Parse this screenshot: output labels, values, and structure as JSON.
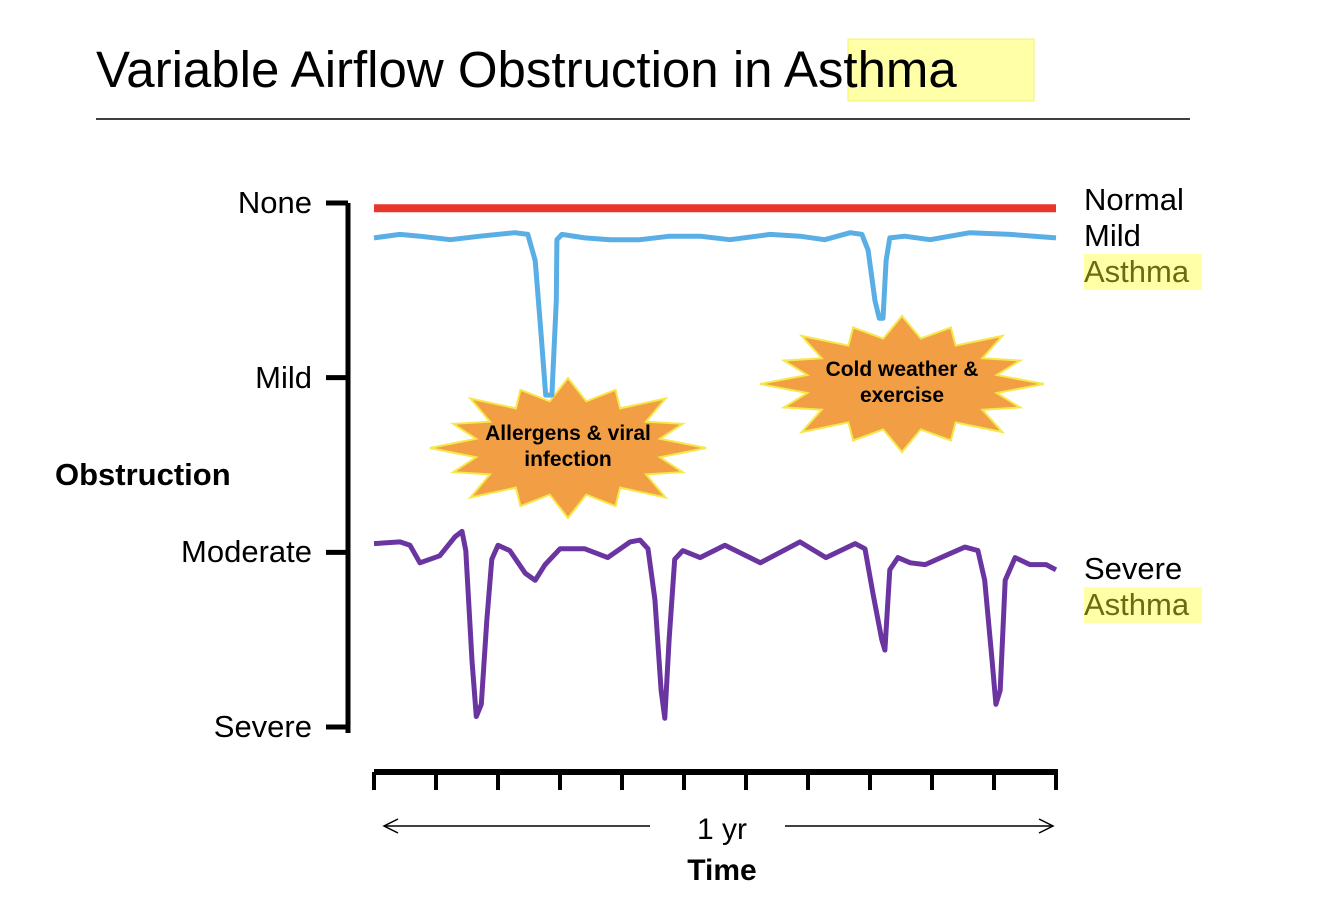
{
  "chart_data": {
    "type": "line",
    "title": "Variable Airflow Obstruction in Asthma",
    "ylabel": "Obstruction",
    "xlabel": "Time",
    "span_label": "1 yr",
    "annotations": [
      "Allergens & viral infection",
      "Cold weather & exercise"
    ],
    "ylim": [
      0,
      3
    ],
    "yticks": [
      {
        "value": 0,
        "label": "None"
      },
      {
        "value": 1,
        "label": "Mild"
      },
      {
        "value": 2,
        "label": "Moderate"
      },
      {
        "value": 3,
        "label": "Severe"
      }
    ],
    "y_inverted": true,
    "xlim": [
      0,
      11
    ],
    "series": [
      {
        "name": "Normal",
        "color": "#e8372a",
        "x": [
          0,
          11
        ],
        "values": [
          0.03,
          0.03
        ]
      },
      {
        "name": "Mild Asthma",
        "color": "#5aaee6",
        "x": [
          0,
          0.42,
          0.74,
          1.23,
          1.71,
          2.27,
          2.48,
          2.6,
          2.69,
          2.77,
          2.87,
          2.94,
          2.95,
          3.03,
          3.4,
          3.81,
          4.29,
          4.77,
          5.26,
          5.74,
          6.39,
          6.87,
          7.27,
          7.68,
          7.87,
          7.97,
          8.08,
          8.15,
          8.21,
          8.26,
          8.32,
          8.56,
          8.97,
          9.61,
          10.26,
          11
        ],
        "values": [
          0.2,
          0.18,
          0.19,
          0.21,
          0.19,
          0.17,
          0.18,
          0.33,
          0.73,
          1.1,
          1.1,
          0.56,
          0.21,
          0.18,
          0.2,
          0.21,
          0.21,
          0.19,
          0.19,
          0.21,
          0.18,
          0.19,
          0.21,
          0.17,
          0.18,
          0.27,
          0.56,
          0.66,
          0.66,
          0.33,
          0.2,
          0.19,
          0.21,
          0.17,
          0.18,
          0.2
        ]
      },
      {
        "name": "Severe Asthma",
        "color": "#6a35a0",
        "x": [
          0,
          0.42,
          0.58,
          0.74,
          1.06,
          1.31,
          1.42,
          1.48,
          1.58,
          1.65,
          1.73,
          1.82,
          1.9,
          2,
          2.19,
          2.44,
          2.6,
          2.76,
          3,
          3.4,
          3.77,
          4.13,
          4.29,
          4.42,
          4.53,
          4.63,
          4.69,
          4.76,
          4.85,
          4.98,
          5.26,
          5.66,
          6.23,
          6.87,
          7.29,
          7.76,
          7.92,
          8.05,
          8.19,
          8.24,
          8.32,
          8.45,
          8.65,
          8.89,
          9.21,
          9.53,
          9.74,
          9.85,
          9.97,
          10.03,
          10.1,
          10.18,
          10.34,
          10.58,
          10.84,
          11
        ],
        "values": [
          1.95,
          1.94,
          1.96,
          2.06,
          2.02,
          1.91,
          1.88,
          1.99,
          2.62,
          2.94,
          2.87,
          2.39,
          2.04,
          1.96,
          1.99,
          2.12,
          2.16,
          2.07,
          1.98,
          1.98,
          2.03,
          1.94,
          1.93,
          1.98,
          2.27,
          2.79,
          2.95,
          2.5,
          2.04,
          1.99,
          2.03,
          1.96,
          2.06,
          1.94,
          2.03,
          1.95,
          1.98,
          2.24,
          2.5,
          2.56,
          2.1,
          2.03,
          2.06,
          2.07,
          2.02,
          1.97,
          1.99,
          2.16,
          2.62,
          2.87,
          2.79,
          2.16,
          2.03,
          2.07,
          2.07,
          2.1
        ]
      }
    ]
  }
}
